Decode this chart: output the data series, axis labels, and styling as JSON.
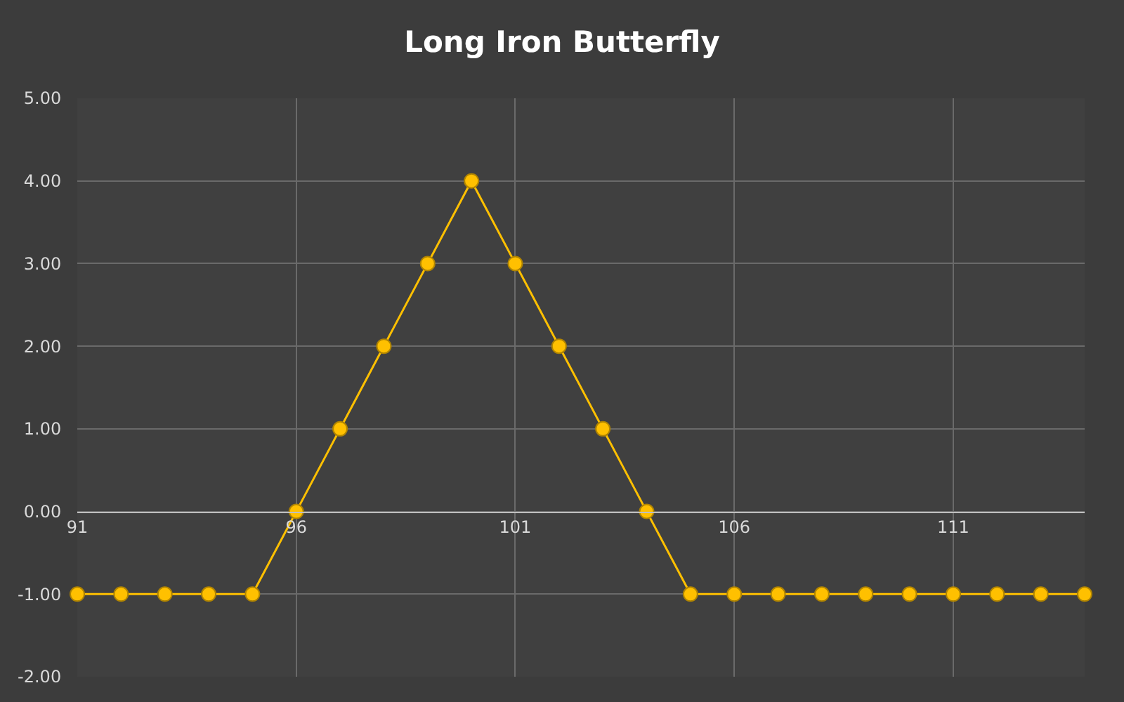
{
  "chart_data": {
    "type": "line",
    "title": "Long Iron Butterfly",
    "x": [
      91,
      92,
      93,
      94,
      95,
      96,
      97,
      98,
      99,
      100,
      101,
      102,
      103,
      104,
      105,
      106,
      107,
      108,
      109,
      110,
      111,
      112,
      113,
      114
    ],
    "series": [
      {
        "color": "#ffc000",
        "values": [
          -1,
          -1,
          -1,
          -1,
          -1,
          0,
          1,
          2,
          3,
          4,
          3,
          2,
          1,
          0,
          -1,
          -1,
          -1,
          -1,
          -1,
          -1,
          -1,
          -1,
          -1,
          -1
        ]
      }
    ],
    "xlim": [
      91,
      114
    ],
    "xticks": [
      91,
      96,
      101,
      106,
      111
    ],
    "ylim": [
      -2,
      5
    ],
    "yticks": [
      {
        "value": -2,
        "label": "-2.00"
      },
      {
        "value": -1,
        "label": "-1.00"
      },
      {
        "value": 0,
        "label": "0.00"
      },
      {
        "value": 1,
        "label": "1.00"
      },
      {
        "value": 2,
        "label": "2.00"
      },
      {
        "value": 3,
        "label": "3.00"
      },
      {
        "value": 4,
        "label": "4.00"
      },
      {
        "value": 5,
        "label": "5.00"
      }
    ],
    "grid": true,
    "marker": "circle"
  }
}
